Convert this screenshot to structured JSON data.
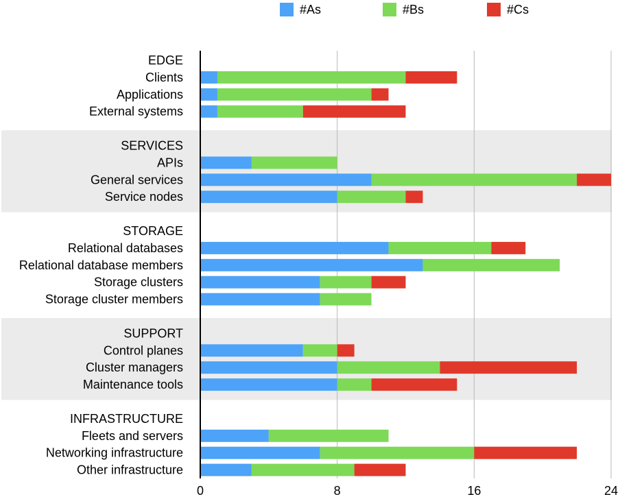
{
  "chart_data": {
    "type": "bar",
    "orientation": "horizontal",
    "stacked": true,
    "legend_position": "top",
    "xlim": [
      0,
      24
    ],
    "xticks": [
      "0",
      "8",
      "16",
      "24"
    ],
    "grid": true,
    "series": [
      {
        "name": "#As",
        "color": "#4da3f7"
      },
      {
        "name": "#Bs",
        "color": "#7ed957"
      },
      {
        "name": "#Cs",
        "color": "#e0392b"
      }
    ],
    "groups": [
      {
        "name": "EDGE",
        "shaded": false,
        "rows": [
          {
            "label": "Clients",
            "values": [
              1,
              11,
              3
            ]
          },
          {
            "label": "Applications",
            "values": [
              1,
              9,
              1
            ]
          },
          {
            "label": "External systems",
            "values": [
              1,
              5,
              6
            ]
          }
        ]
      },
      {
        "name": "SERVICES",
        "shaded": true,
        "rows": [
          {
            "label": "APIs",
            "values": [
              3,
              5,
              0
            ]
          },
          {
            "label": "General services",
            "values": [
              10,
              12,
              2
            ]
          },
          {
            "label": "Service nodes",
            "values": [
              8,
              4,
              1
            ]
          }
        ]
      },
      {
        "name": "STORAGE",
        "shaded": false,
        "rows": [
          {
            "label": "Relational databases",
            "values": [
              11,
              6,
              2
            ]
          },
          {
            "label": "Relational database members",
            "values": [
              13,
              8,
              0
            ]
          },
          {
            "label": "Storage clusters",
            "values": [
              7,
              3,
              2
            ]
          },
          {
            "label": "Storage cluster members",
            "values": [
              7,
              3,
              0
            ]
          }
        ]
      },
      {
        "name": "SUPPORT",
        "shaded": true,
        "rows": [
          {
            "label": "Control planes",
            "values": [
              6,
              2,
              1
            ]
          },
          {
            "label": "Cluster managers",
            "values": [
              8,
              6,
              8
            ]
          },
          {
            "label": "Maintenance tools",
            "values": [
              8,
              2,
              5
            ]
          }
        ]
      },
      {
        "name": "INFRASTRUCTURE",
        "shaded": false,
        "rows": [
          {
            "label": "Fleets and servers",
            "values": [
              4,
              7,
              0
            ]
          },
          {
            "label": "Networking infrastructure",
            "values": [
              7,
              9,
              6
            ]
          },
          {
            "label": "Other infrastructure",
            "values": [
              3,
              6,
              3
            ]
          }
        ]
      }
    ],
    "shade_color": "#ebebeb",
    "grid_color": "#b8b8b8"
  }
}
